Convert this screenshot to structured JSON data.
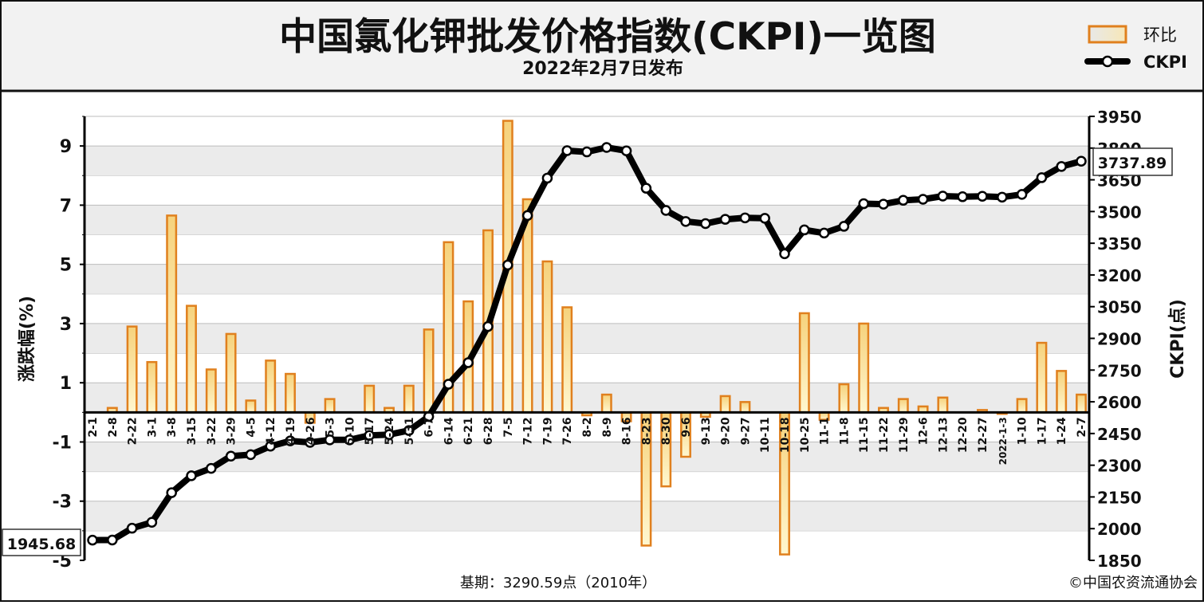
{
  "title": "中国氯化钾批发价格指数(CKPI)一览图",
  "subtitle": "2022年2月7日发布",
  "base_period": "基期：3290.59点（2010年）",
  "copyright": "©中国农资流通协会",
  "legend": {
    "bar": "环比",
    "line": "CKPI"
  },
  "first_value_label": "1945.68",
  "last_value_label": "3737.89",
  "colors": {
    "bar_fill_top": "#f6d27c",
    "bar_fill_bottom": "#fff7cf",
    "bar_border": "#e0801e",
    "line": "#000000",
    "marker_fill": "#ffffff",
    "grid_band": "#ebebeb",
    "header_bg": "#f2f2f2"
  },
  "chart_data": {
    "type": "bar",
    "title": "中国氯化钾批发价格指数(CKPI)一览图",
    "subtitle": "2022年2月7日发布",
    "ylabel_left": "涨跌幅(%)",
    "ylabel_right": "CKPI(点)",
    "ylim_left": [
      -5,
      10
    ],
    "ylim_right": [
      1850,
      3950
    ],
    "yticks_left": [
      "-5",
      "-3",
      "-1",
      "1",
      "3",
      "5",
      "7",
      "9"
    ],
    "yticks_right": [
      "1850",
      "2000",
      "2150",
      "2300",
      "2450",
      "2600",
      "2750",
      "2900",
      "3050",
      "3200",
      "3350",
      "3500",
      "3650",
      "3800",
      "3950"
    ],
    "grid": true,
    "legend_position": "top-right",
    "categories": [
      "2-1",
      "2-8",
      "2-22",
      "3-1",
      "3-8",
      "3-15",
      "3-22",
      "3-29",
      "4-5",
      "4-12",
      "4-19",
      "4-26",
      "5-3",
      "5-10",
      "5-17",
      "5-24",
      "5-31",
      "6-7",
      "6-14",
      "6-21",
      "6-28",
      "7-5",
      "7-12",
      "7-19",
      "7-26",
      "8-2",
      "8-9",
      "8-16",
      "8-23",
      "8-30",
      "9-6",
      "9-13",
      "9-20",
      "9-27",
      "10-11",
      "10-18",
      "10-25",
      "11-1",
      "11-8",
      "11-15",
      "11-22",
      "11-29",
      "12-6",
      "12-13",
      "12-20",
      "12-27",
      "2022-1-3",
      "1-10",
      "1-17",
      "1-24",
      "2-7"
    ],
    "series": [
      {
        "name": "环比",
        "type": "bar",
        "axis": "left",
        "values": [
          0,
          0.15,
          2.9,
          1.7,
          6.65,
          3.6,
          1.45,
          2.65,
          0.4,
          1.75,
          1.3,
          -0.35,
          0.45,
          0,
          0.9,
          0.15,
          0.9,
          2.8,
          5.75,
          3.75,
          6.15,
          9.85,
          7.2,
          5.1,
          3.55,
          -0.1,
          0.6,
          -0.3,
          -4.5,
          -2.5,
          -1.5,
          -0.15,
          0.55,
          0.35,
          0,
          -4.8,
          3.35,
          -0.25,
          0.95,
          3.0,
          0.15,
          0.45,
          0.2,
          0.5,
          0,
          0.08,
          -0.05,
          0.45,
          2.35,
          1.4,
          0.6
        ]
      },
      {
        "name": "CKPI",
        "type": "line",
        "axis": "right",
        "values": [
          1945.68,
          1946,
          2002,
          2030,
          2170,
          2250,
          2285,
          2343,
          2350,
          2390,
          2415,
          2408,
          2420,
          2420,
          2441,
          2445,
          2464,
          2530,
          2683,
          2785,
          2956,
          3247,
          3481,
          3658,
          3788,
          3782,
          3803,
          3787,
          3610,
          3505,
          3453,
          3443,
          3463,
          3470,
          3468,
          3300,
          3413,
          3398,
          3430,
          3537,
          3535,
          3553,
          3558,
          3573,
          3570,
          3572,
          3568,
          3581,
          3660,
          3713,
          3737.89
        ]
      }
    ]
  }
}
